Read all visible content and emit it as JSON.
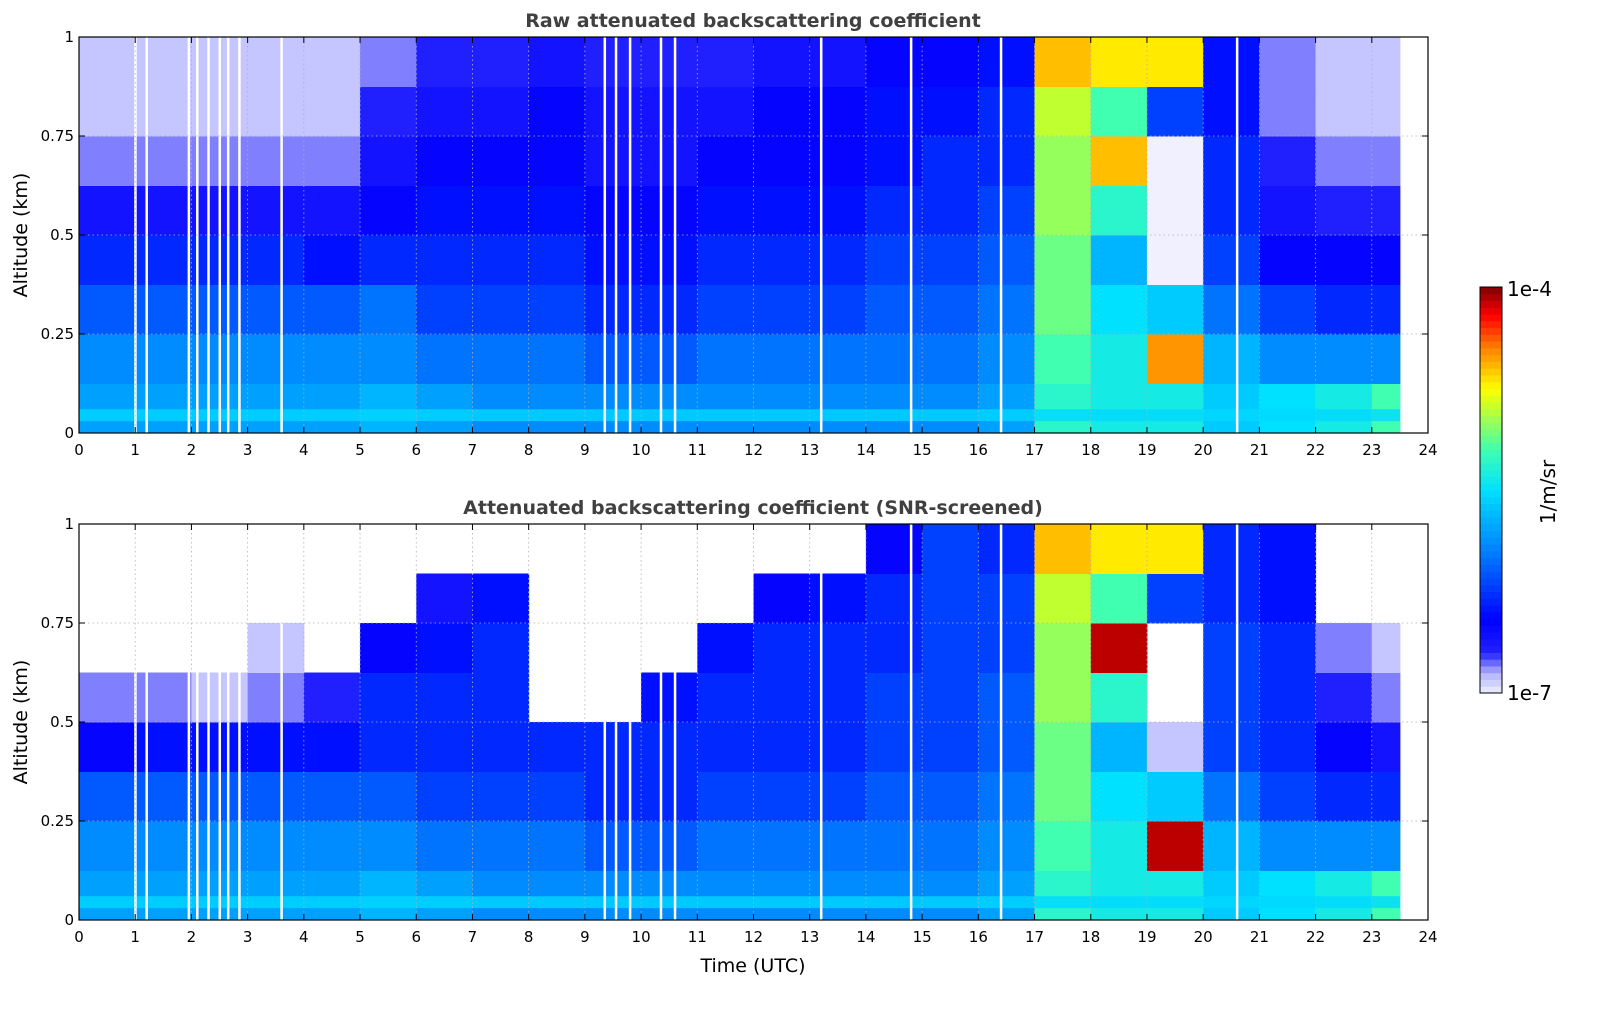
{
  "chart_data": [
    {
      "type": "heatmap",
      "title": "Raw attenuated backscattering coefficient",
      "xlabel": "",
      "ylabel": "Altitude (km)",
      "xlim": [
        0,
        24
      ],
      "ylim": [
        0,
        1
      ],
      "xticks": [
        "0",
        "1",
        "2",
        "3",
        "4",
        "5",
        "6",
        "7",
        "8",
        "9",
        "10",
        "11",
        "12",
        "13",
        "14",
        "15",
        "16",
        "17",
        "18",
        "19",
        "20",
        "21",
        "22",
        "23",
        "24"
      ],
      "yticks": [
        "0",
        "0.25",
        "0.5",
        "0.75",
        "1"
      ],
      "grid": true,
      "x_bin_hours": 1,
      "y_bin_km": 0.125,
      "data_end_hour": 23.5,
      "log10_values_by_hour_bottom_to_top": [
        [
          -5.8,
          -5.9,
          -6.1,
          -6.3,
          -6.6,
          -6.8,
          -6.9,
          -6.9
        ],
        [
          -5.8,
          -5.9,
          -6.1,
          -6.3,
          -6.6,
          -6.8,
          -6.9,
          -6.9
        ],
        [
          -5.8,
          -5.9,
          -6.1,
          -6.3,
          -6.6,
          -6.8,
          -6.9,
          -6.9
        ],
        [
          -5.8,
          -5.9,
          -6.1,
          -6.3,
          -6.6,
          -6.8,
          -6.9,
          -6.9
        ],
        [
          -5.8,
          -5.9,
          -6.1,
          -6.4,
          -6.6,
          -6.8,
          -6.9,
          -6.9
        ],
        [
          -5.7,
          -5.9,
          -6.0,
          -6.3,
          -6.5,
          -6.6,
          -6.7,
          -6.8
        ],
        [
          -5.8,
          -6.0,
          -6.2,
          -6.3,
          -6.4,
          -6.5,
          -6.6,
          -6.7
        ],
        [
          -5.9,
          -6.0,
          -6.2,
          -6.3,
          -6.4,
          -6.5,
          -6.6,
          -6.7
        ],
        [
          -5.9,
          -6.0,
          -6.2,
          -6.3,
          -6.4,
          -6.5,
          -6.5,
          -6.6
        ],
        [
          -5.9,
          -6.1,
          -6.3,
          -6.4,
          -6.5,
          -6.6,
          -6.6,
          -6.7
        ],
        [
          -5.9,
          -6.1,
          -6.3,
          -6.4,
          -6.5,
          -6.6,
          -6.6,
          -6.7
        ],
        [
          -5.9,
          -6.0,
          -6.2,
          -6.3,
          -6.4,
          -6.5,
          -6.6,
          -6.7
        ],
        [
          -5.9,
          -6.0,
          -6.2,
          -6.3,
          -6.4,
          -6.5,
          -6.5,
          -6.6
        ],
        [
          -5.9,
          -6.0,
          -6.2,
          -6.3,
          -6.4,
          -6.5,
          -6.5,
          -6.6
        ],
        [
          -5.9,
          -6.0,
          -6.1,
          -6.2,
          -6.3,
          -6.4,
          -6.4,
          -6.5
        ],
        [
          -5.9,
          -6.0,
          -6.1,
          -6.2,
          -6.3,
          -6.3,
          -6.4,
          -6.5
        ],
        [
          -5.8,
          -5.9,
          -6.0,
          -6.1,
          -6.2,
          -6.3,
          -6.3,
          -6.4
        ],
        [
          -5.3,
          -5.2,
          -5.1,
          -5.1,
          -5.0,
          -5.0,
          -4.9,
          -4.6
        ],
        [
          -5.4,
          -5.4,
          -5.5,
          -5.7,
          -5.3,
          -4.6,
          -5.2,
          -4.7
        ],
        [
          -5.4,
          -4.5,
          -5.6,
          -7.0,
          -7.0,
          -7.0,
          -6.2,
          -4.7
        ],
        [
          -5.6,
          -5.7,
          -6.0,
          -6.2,
          -6.3,
          -6.3,
          -6.4,
          -6.4
        ],
        [
          -5.5,
          -5.9,
          -6.2,
          -6.5,
          -6.6,
          -6.7,
          -6.8,
          -6.8
        ],
        [
          -5.4,
          -5.9,
          -6.3,
          -6.5,
          -6.7,
          -6.8,
          -6.9,
          -6.9
        ],
        [
          -5.2,
          -5.9,
          -6.3,
          -6.5,
          -6.7,
          -6.8,
          -6.9,
          -6.9
        ]
      ],
      "gap_times": [
        1.0,
        1.2,
        1.95,
        2.1,
        2.3,
        2.5,
        2.65,
        2.85,
        3.6,
        9.35,
        9.55,
        9.8,
        10.35,
        10.6,
        13.2,
        14.8,
        16.4,
        20.6
      ]
    },
    {
      "type": "heatmap",
      "title": "Attenuated backscattering coefficient (SNR-screened)",
      "xlabel": "Time (UTC)",
      "ylabel": "Altitude (km)",
      "xlim": [
        0,
        24
      ],
      "ylim": [
        0,
        1
      ],
      "xticks": [
        "0",
        "1",
        "2",
        "3",
        "4",
        "5",
        "6",
        "7",
        "8",
        "9",
        "10",
        "11",
        "12",
        "13",
        "14",
        "15",
        "16",
        "17",
        "18",
        "19",
        "20",
        "21",
        "22",
        "23",
        "24"
      ],
      "yticks": [
        "0",
        "0.25",
        "0.5",
        "0.75",
        "1"
      ],
      "grid": true,
      "x_bin_hours": 1,
      "y_bin_km": 0.125,
      "data_end_hour": 23.5,
      "log10_values_by_hour_bottom_to_top": [
        [
          -5.8,
          -5.9,
          -6.1,
          -6.5,
          -6.8,
          null,
          null,
          null
        ],
        [
          -5.8,
          -5.9,
          -6.1,
          -6.4,
          -6.8,
          null,
          null,
          null
        ],
        [
          -5.8,
          -5.9,
          -6.1,
          -6.4,
          -6.9,
          null,
          null,
          null
        ],
        [
          -5.8,
          -5.9,
          -6.1,
          -6.4,
          -6.8,
          -6.9,
          null,
          null
        ],
        [
          -5.8,
          -5.9,
          -6.1,
          -6.4,
          -6.7,
          null,
          null,
          null
        ],
        [
          -5.7,
          -5.9,
          -6.1,
          -6.3,
          -6.3,
          -6.5,
          null,
          null
        ],
        [
          -5.8,
          -6.0,
          -6.2,
          -6.3,
          -6.3,
          -6.4,
          -6.6,
          null
        ],
        [
          -5.9,
          -6.0,
          -6.2,
          -6.3,
          -6.3,
          -6.3,
          -6.4,
          null
        ],
        [
          -5.9,
          -6.0,
          -6.2,
          -6.3,
          null,
          null,
          null,
          null
        ],
        [
          -5.9,
          -6.1,
          -6.3,
          -6.3,
          null,
          null,
          null,
          null
        ],
        [
          -5.9,
          -6.1,
          -6.3,
          -6.3,
          -6.4,
          null,
          null,
          null
        ],
        [
          -5.9,
          -6.0,
          -6.2,
          -6.3,
          -6.3,
          -6.4,
          null,
          null
        ],
        [
          -5.9,
          -6.0,
          -6.2,
          -6.3,
          -6.3,
          -6.3,
          -6.5,
          null
        ],
        [
          -5.9,
          -6.0,
          -6.2,
          -6.3,
          -6.3,
          -6.3,
          -6.4,
          null
        ],
        [
          -5.9,
          -6.0,
          -6.1,
          -6.2,
          -6.2,
          -6.3,
          -6.3,
          -6.5
        ],
        [
          -5.9,
          -6.0,
          -6.1,
          -6.2,
          -6.2,
          -6.2,
          -6.2,
          -6.2
        ],
        [
          -5.8,
          -5.9,
          -6.0,
          -6.1,
          -6.1,
          -6.2,
          -6.2,
          -6.3
        ],
        [
          -5.3,
          -5.2,
          -5.1,
          -5.1,
          -5.0,
          -5.0,
          -4.9,
          -4.6
        ],
        [
          -5.4,
          -5.4,
          -5.5,
          -5.7,
          -5.3,
          -4.1,
          -5.2,
          -4.7
        ],
        [
          -5.4,
          -4.1,
          -5.6,
          -6.9,
          null,
          null,
          -6.2,
          -4.7
        ],
        [
          -5.6,
          -5.7,
          -6.0,
          -6.2,
          -6.2,
          -6.2,
          -6.3,
          -6.3
        ],
        [
          -5.5,
          -5.9,
          -6.2,
          -6.3,
          -6.3,
          -6.3,
          -6.4,
          -6.4
        ],
        [
          -5.4,
          -5.9,
          -6.3,
          -6.5,
          -6.7,
          -6.8,
          null,
          null
        ],
        [
          -5.2,
          -5.9,
          -6.3,
          -6.6,
          -6.8,
          -6.9,
          null,
          null
        ]
      ],
      "gap_times": [
        1.0,
        1.2,
        1.95,
        2.1,
        2.3,
        2.5,
        2.65,
        2.85,
        3.6,
        9.35,
        9.55,
        9.8,
        10.35,
        10.6,
        13.2,
        14.8,
        16.4,
        20.6
      ]
    }
  ],
  "colorbar": {
    "label": "1/m/sr",
    "max_label": "1e-4",
    "min_label": "1e-7",
    "log10_range": [
      -7,
      -4
    ],
    "scale": "log"
  },
  "colors": {
    "title": "#404040",
    "grid": "#b0b0b0"
  }
}
